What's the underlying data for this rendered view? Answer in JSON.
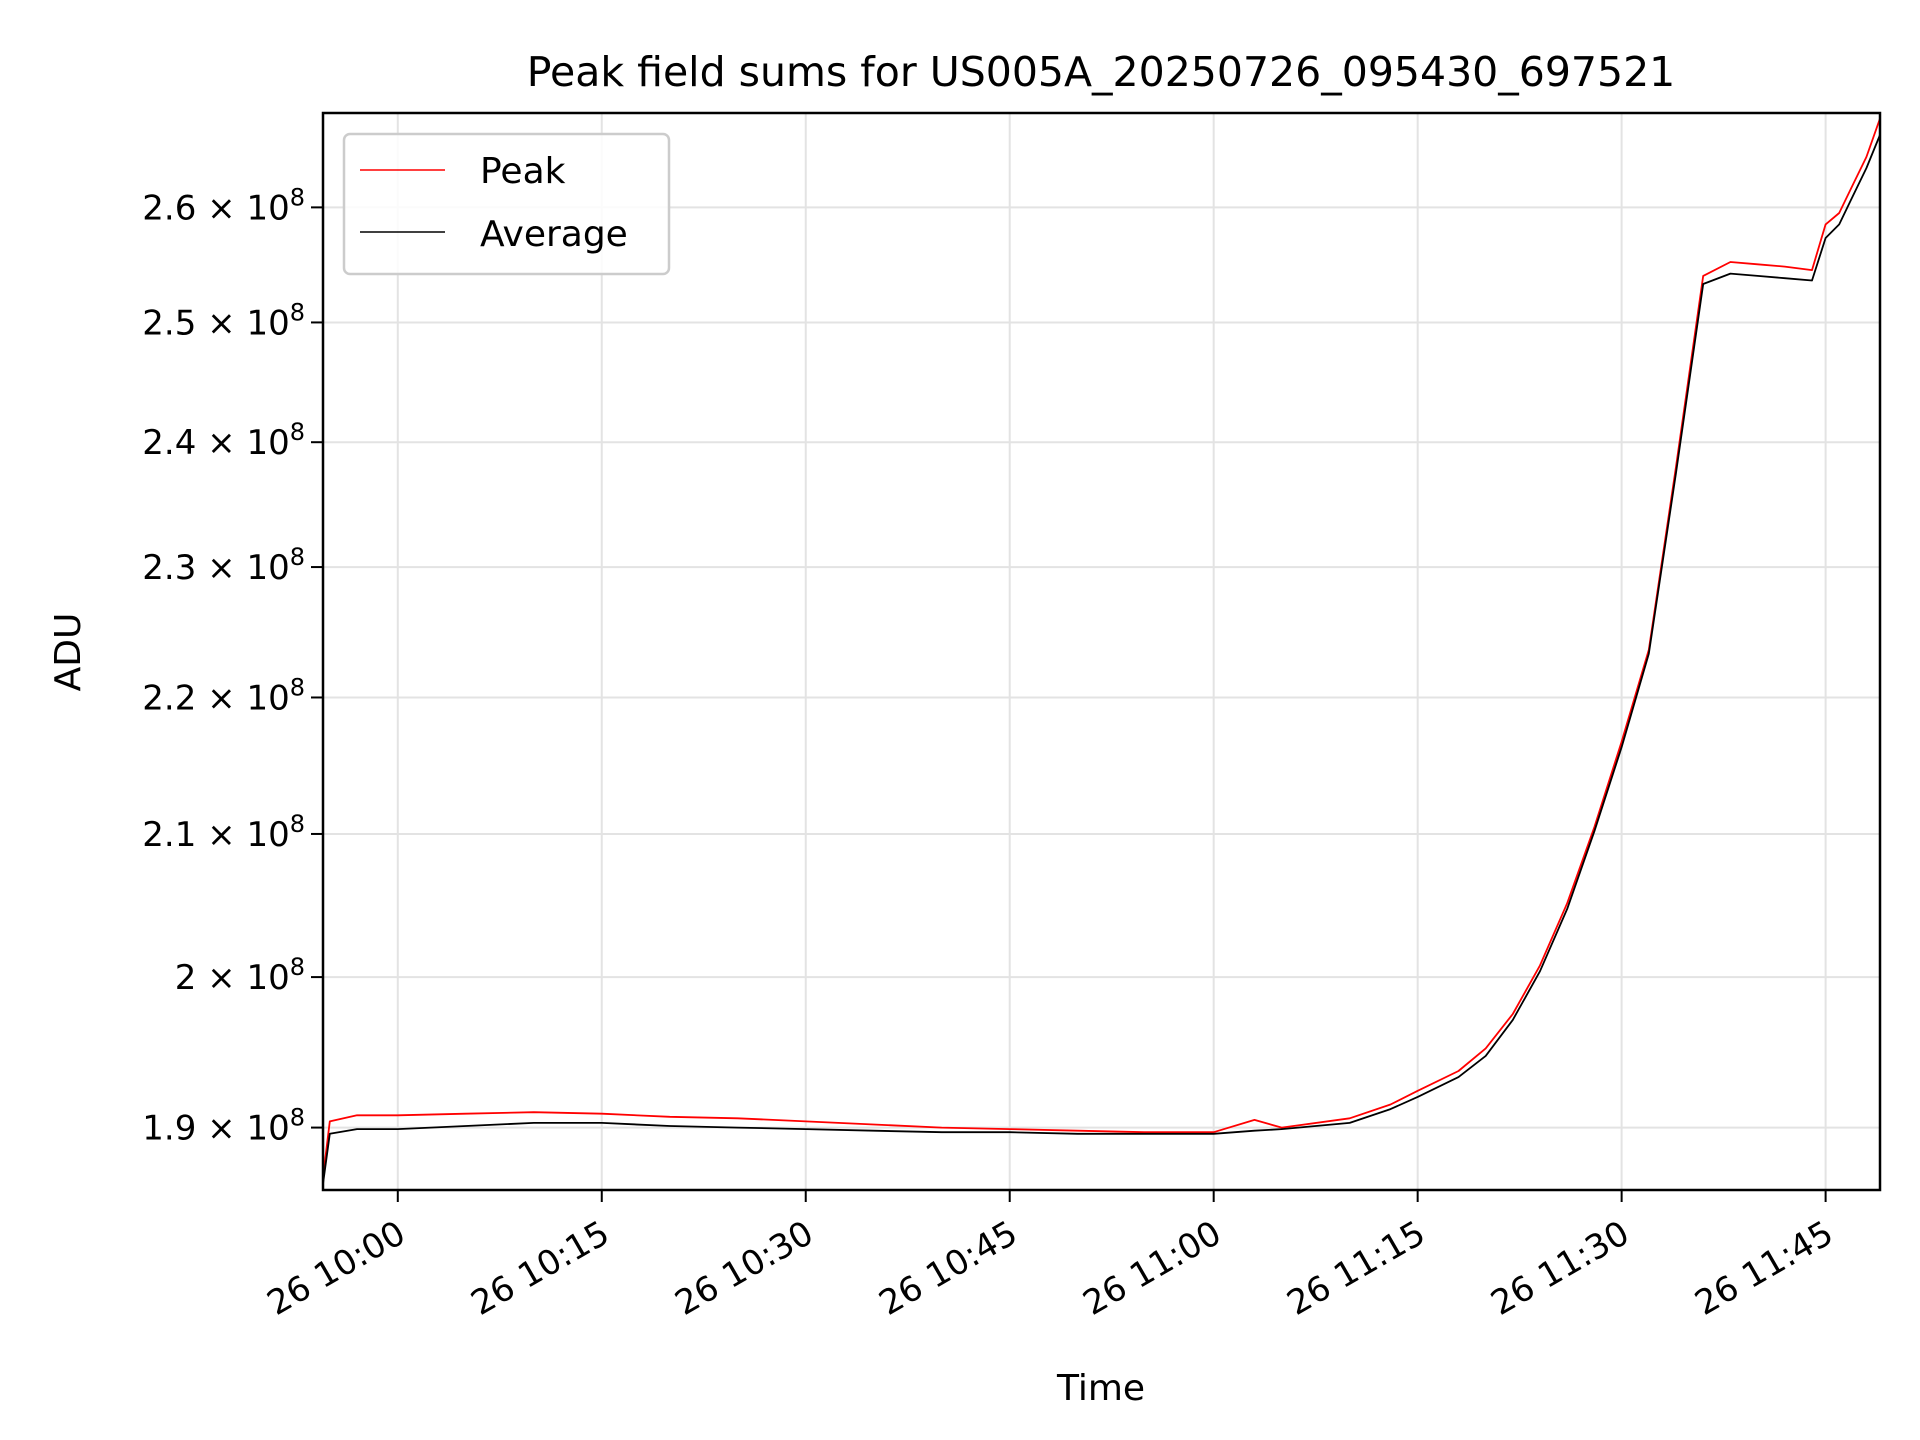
{
  "chart_data": {
    "type": "line",
    "title": "Peak field sums for US005A_20250726_095430_697521",
    "xlabel": "Time",
    "ylabel": "ADU",
    "yscale": "log",
    "xlim": [
      "2025-07-26 09:54:30",
      "2025-07-26 11:49:00"
    ],
    "ylim": [
      186000000,
      268500000
    ],
    "grid": true,
    "legend_position": "top-left",
    "x_ticks": [
      "26 10:00",
      "26 10:15",
      "26 10:30",
      "26 10:45",
      "26 11:00",
      "26 11:15",
      "26 11:30",
      "26 11:45"
    ],
    "y_ticks": [
      {
        "value": 190000000,
        "mantissa": "1.9"
      },
      {
        "value": 200000000,
        "mantissa": "2"
      },
      {
        "value": 210000000,
        "mantissa": "2.1"
      },
      {
        "value": 220000000,
        "mantissa": "2.2"
      },
      {
        "value": 230000000,
        "mantissa": "2.3"
      },
      {
        "value": 240000000,
        "mantissa": "2.4"
      },
      {
        "value": 250000000,
        "mantissa": "2.5"
      },
      {
        "value": 260000000,
        "mantissa": "2.6"
      }
    ],
    "y_tick_suffix": "× 10",
    "y_tick_exponent": "8",
    "series": [
      {
        "name": "Peak",
        "color": "#ff0000",
        "x": [
          "2025-07-26 09:54:30",
          "2025-07-26 09:55",
          "2025-07-26 09:57",
          "2025-07-26 10:00",
          "2025-07-26 10:05",
          "2025-07-26 10:10",
          "2025-07-26 10:15",
          "2025-07-26 10:20",
          "2025-07-26 10:25",
          "2025-07-26 10:30",
          "2025-07-26 10:35",
          "2025-07-26 10:40",
          "2025-07-26 10:45",
          "2025-07-26 10:50",
          "2025-07-26 10:55",
          "2025-07-26 11:00",
          "2025-07-26 11:03",
          "2025-07-26 11:05",
          "2025-07-26 11:10",
          "2025-07-26 11:13",
          "2025-07-26 11:15",
          "2025-07-26 11:18",
          "2025-07-26 11:20",
          "2025-07-26 11:22",
          "2025-07-26 11:24",
          "2025-07-26 11:26",
          "2025-07-26 11:28",
          "2025-07-26 11:30",
          "2025-07-26 11:32",
          "2025-07-26 11:34",
          "2025-07-26 11:36",
          "2025-07-26 11:38",
          "2025-07-26 11:40",
          "2025-07-26 11:42",
          "2025-07-26 11:44",
          "2025-07-26 11:45",
          "2025-07-26 11:46",
          "2025-07-26 11:47",
          "2025-07-26 11:48",
          "2025-07-26 11:49"
        ],
        "y": [
          186800000,
          190400000,
          190800000,
          190800000,
          190900000,
          191000000,
          190900000,
          190700000,
          190600000,
          190400000,
          190200000,
          190000000,
          189900000,
          189800000,
          189700000,
          189700000,
          190500000,
          190000000,
          190600000,
          191500000,
          192400000,
          193700000,
          195200000,
          197500000,
          200800000,
          205100000,
          210500000,
          216700000,
          223600000,
          238000000,
          254000000,
          255200000,
          255000000,
          254800000,
          254500000,
          258500000,
          259500000,
          262000000,
          264500000,
          268000000
        ]
      },
      {
        "name": "Average",
        "color": "#000000",
        "x": [
          "2025-07-26 09:54:30",
          "2025-07-26 09:55",
          "2025-07-26 09:57",
          "2025-07-26 10:00",
          "2025-07-26 10:05",
          "2025-07-26 10:10",
          "2025-07-26 10:15",
          "2025-07-26 10:20",
          "2025-07-26 10:25",
          "2025-07-26 10:30",
          "2025-07-26 10:35",
          "2025-07-26 10:40",
          "2025-07-26 10:45",
          "2025-07-26 10:50",
          "2025-07-26 10:55",
          "2025-07-26 11:00",
          "2025-07-26 11:03",
          "2025-07-26 11:05",
          "2025-07-26 11:10",
          "2025-07-26 11:13",
          "2025-07-26 11:15",
          "2025-07-26 11:18",
          "2025-07-26 11:20",
          "2025-07-26 11:22",
          "2025-07-26 11:24",
          "2025-07-26 11:26",
          "2025-07-26 11:28",
          "2025-07-26 11:30",
          "2025-07-26 11:32",
          "2025-07-26 11:34",
          "2025-07-26 11:36",
          "2025-07-26 11:38",
          "2025-07-26 11:40",
          "2025-07-26 11:42",
          "2025-07-26 11:44",
          "2025-07-26 11:45",
          "2025-07-26 11:46",
          "2025-07-26 11:47",
          "2025-07-26 11:48",
          "2025-07-26 11:49"
        ],
        "y": [
          186400000,
          189600000,
          189900000,
          189900000,
          190100000,
          190300000,
          190300000,
          190100000,
          190000000,
          189900000,
          189800000,
          189700000,
          189700000,
          189600000,
          189600000,
          189600000,
          189800000,
          189900000,
          190300000,
          191200000,
          192000000,
          193300000,
          194700000,
          197100000,
          200400000,
          204700000,
          210200000,
          216300000,
          223300000,
          237500000,
          253300000,
          254200000,
          254000000,
          253800000,
          253600000,
          257300000,
          258500000,
          261000000,
          263500000,
          266500000
        ]
      }
    ]
  }
}
